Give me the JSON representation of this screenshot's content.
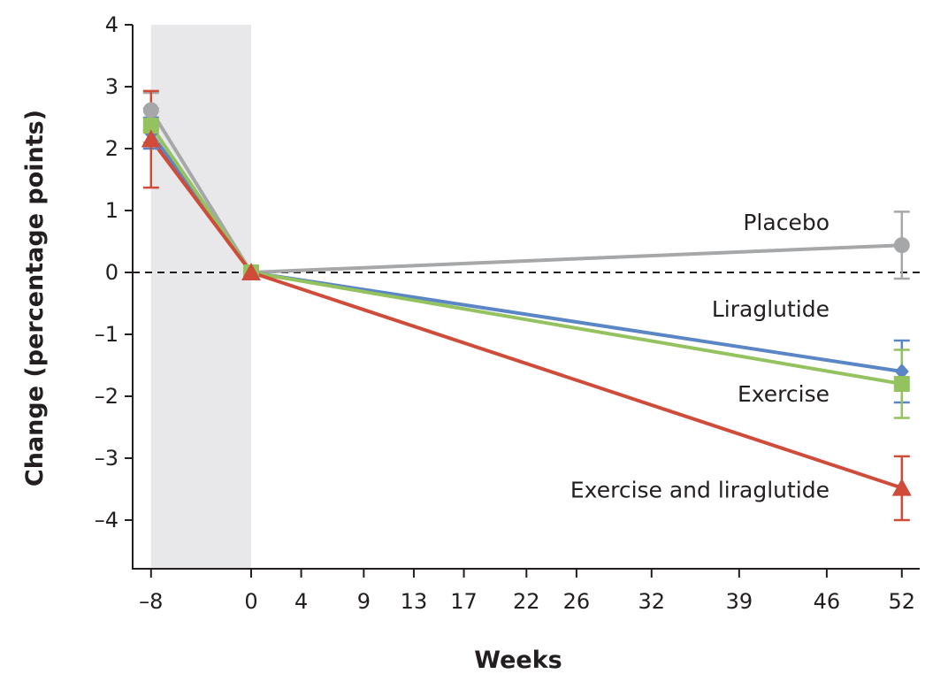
{
  "chart_data": {
    "type": "line",
    "xlabel": "Weeks",
    "ylabel": "Change (percentage points)",
    "x_ticks": [
      -8,
      0,
      4,
      9,
      13,
      17,
      22,
      26,
      32,
      39,
      46,
      52
    ],
    "y_ticks": [
      4,
      3,
      2,
      1,
      0,
      -1,
      -2,
      -3,
      -4
    ],
    "tick_labels": {
      "x": [
        "–8",
        "0",
        "4",
        "9",
        "13",
        "17",
        "22",
        "26",
        "32",
        "39",
        "46",
        "52"
      ],
      "y": [
        "4",
        "3",
        "2",
        "1",
        "0",
        "–1",
        "–2",
        "–3",
        "–4"
      ]
    },
    "xlim": [
      -9.5,
      53
    ],
    "ylim": [
      -4.8,
      4
    ],
    "shaded_region": [
      -8,
      0
    ],
    "reference_line": 0,
    "legend_placement": "inline labels at right",
    "series": [
      {
        "name": "Placebo",
        "color": "#a5a7a9",
        "marker": "circle",
        "x": [
          -8,
          0,
          52
        ],
        "y": [
          2.62,
          0,
          0.44
        ],
        "error_low": [
          2.3,
          null,
          -0.1
        ],
        "error_high": [
          2.9,
          null,
          0.98
        ]
      },
      {
        "name": "Liraglutide",
        "color": "#5b86c5",
        "marker": "diamond",
        "x": [
          -8,
          0,
          52
        ],
        "y": [
          2.25,
          0,
          -1.6
        ],
        "error_low": [
          2.0,
          null,
          -2.1
        ],
        "error_high": [
          2.5,
          null,
          -1.1
        ]
      },
      {
        "name": "Exercise",
        "color": "#93c25e",
        "marker": "square",
        "x": [
          -8,
          0,
          52
        ],
        "y": [
          2.37,
          0,
          -1.8
        ],
        "error_low": [
          2.1,
          null,
          -2.35
        ],
        "error_high": [
          2.65,
          null,
          -1.25
        ]
      },
      {
        "name": "Exercise and liraglutide",
        "color": "#cf4b3a",
        "marker": "triangle",
        "x": [
          -8,
          0,
          52
        ],
        "y": [
          2.15,
          0,
          -3.48
        ],
        "error_low": [
          1.37,
          null,
          -4.0
        ],
        "error_high": [
          2.93,
          null,
          -2.97
        ]
      }
    ]
  }
}
